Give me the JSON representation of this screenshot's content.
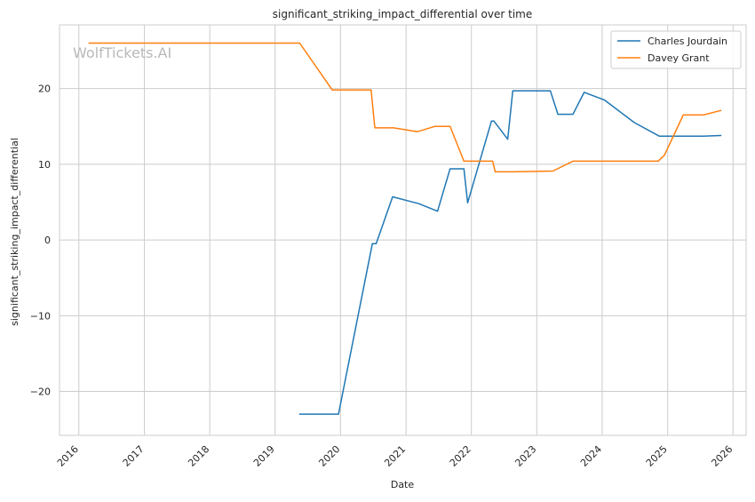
{
  "chart_data": {
    "type": "line",
    "title": "significant_striking_impact_differential over time",
    "xlabel": "Date",
    "ylabel": "significant_striking_impact_differential",
    "watermark": "WolfTickets.AI",
    "xlim": [
      "2015-09-15",
      "2026-03-15"
    ],
    "ylim": [
      -25.8,
      28.4
    ],
    "x_ticks": [
      "2016",
      "2017",
      "2018",
      "2019",
      "2020",
      "2021",
      "2022",
      "2023",
      "2024",
      "2025",
      "2026"
    ],
    "y_ticks": [
      -20,
      -10,
      0,
      10,
      20
    ],
    "y_tick_labels": [
      "−20",
      "−10",
      "0",
      "10",
      "20"
    ],
    "grid": true,
    "legend_position": "top-right",
    "series": [
      {
        "name": "Charles Jourdain",
        "color": "#1f77b4",
        "points": [
          {
            "x": "2019-05-18",
            "y": -23.0
          },
          {
            "x": "2019-12-21",
            "y": -23.0
          },
          {
            "x": "2020-06-27",
            "y": -0.5
          },
          {
            "x": "2020-07-18",
            "y": -0.5
          },
          {
            "x": "2020-10-18",
            "y": 5.7
          },
          {
            "x": "2021-03-13",
            "y": 4.8
          },
          {
            "x": "2021-06-26",
            "y": 3.8
          },
          {
            "x": "2021-09-04",
            "y": 9.4
          },
          {
            "x": "2021-11-20",
            "y": 9.4
          },
          {
            "x": "2021-12-11",
            "y": 4.9
          },
          {
            "x": "2022-04-23",
            "y": 15.7
          },
          {
            "x": "2022-05-07",
            "y": 15.7
          },
          {
            "x": "2022-07-23",
            "y": 13.3
          },
          {
            "x": "2022-08-20",
            "y": 19.7
          },
          {
            "x": "2023-03-18",
            "y": 19.7
          },
          {
            "x": "2023-04-29",
            "y": 16.6
          },
          {
            "x": "2023-07-22",
            "y": 16.6
          },
          {
            "x": "2023-09-23",
            "y": 19.5
          },
          {
            "x": "2024-01-13",
            "y": 18.5
          },
          {
            "x": "2024-06-29",
            "y": 15.5
          },
          {
            "x": "2024-11-16",
            "y": 13.7
          },
          {
            "x": "2025-07-19",
            "y": 13.7
          },
          {
            "x": "2025-10-25",
            "y": 13.8
          }
        ]
      },
      {
        "name": "Davey Grant",
        "color": "#ff7f0e",
        "points": [
          {
            "x": "2016-02-27",
            "y": 26.0
          },
          {
            "x": "2019-05-18",
            "y": 26.0
          },
          {
            "x": "2019-11-16",
            "y": 19.8
          },
          {
            "x": "2020-06-20",
            "y": 19.8
          },
          {
            "x": "2020-07-11",
            "y": 14.8
          },
          {
            "x": "2020-10-24",
            "y": 14.8
          },
          {
            "x": "2021-03-06",
            "y": 14.3
          },
          {
            "x": "2021-06-12",
            "y": 15.0
          },
          {
            "x": "2021-09-04",
            "y": 15.0
          },
          {
            "x": "2021-11-20",
            "y": 10.4
          },
          {
            "x": "2022-04-30",
            "y": 10.4
          },
          {
            "x": "2022-05-14",
            "y": 9.0
          },
          {
            "x": "2022-08-20",
            "y": 9.0
          },
          {
            "x": "2023-04-01",
            "y": 9.1
          },
          {
            "x": "2023-07-22",
            "y": 10.4
          },
          {
            "x": "2024-11-09",
            "y": 10.4
          },
          {
            "x": "2024-12-14",
            "y": 11.2
          },
          {
            "x": "2025-03-29",
            "y": 16.5
          },
          {
            "x": "2025-07-19",
            "y": 16.5
          },
          {
            "x": "2025-10-25",
            "y": 17.1
          }
        ]
      }
    ]
  }
}
